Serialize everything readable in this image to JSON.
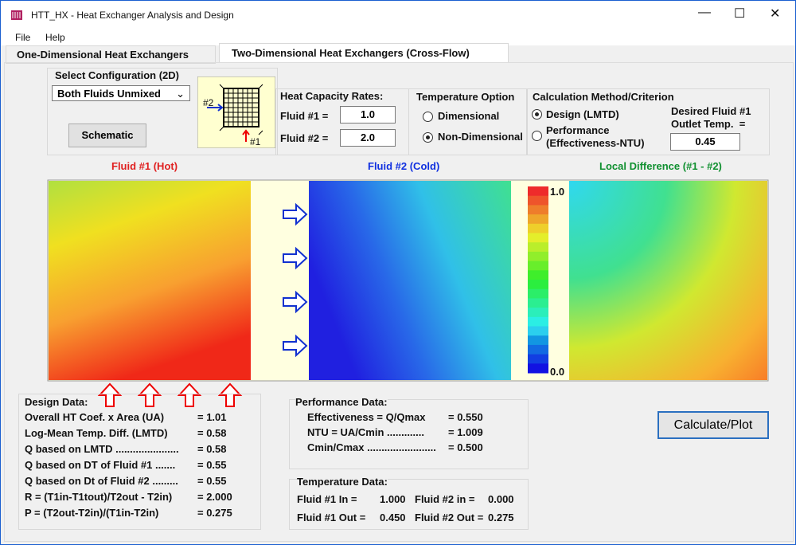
{
  "window": {
    "title": "HTT_HX - Heat Exchanger Analysis and Design"
  },
  "menu": [
    "File",
    "Help"
  ],
  "tabs": [
    "One-Dimensional Heat Exchangers",
    "Two-Dimensional Heat Exchangers (Cross-Flow)"
  ],
  "config": {
    "label": "Select Configuration (2D)",
    "selected": "Both Fluids Unmixed",
    "button": "Schematic"
  },
  "schematic": {
    "fluid_2": "#2",
    "fluid_1": "#1"
  },
  "heat_capacity": {
    "title": "Heat Capacity Rates:",
    "fluid_1_label": "Fluid #1 =",
    "fluid_1_value": "1.0",
    "fluid_2_label": "Fluid #2 =",
    "fluid_2_value": "2.0"
  },
  "temperature_option": {
    "title": "Temperature Option",
    "options": [
      "Dimensional",
      "Non-Dimensional"
    ]
  },
  "calculation": {
    "title": "Calculation Method/Criterion",
    "design": "Design (LMTD)",
    "performance": [
      "Performance",
      "(Effectiveness-NTU)"
    ],
    "desired": [
      "Desired Fluid #1",
      "Outlet Temp.  ="
    ],
    "desired_value": "0.45"
  },
  "plots": {
    "titles": [
      "Fluid #1 (Hot)",
      "Fluid #2 (Cold)",
      "Local Difference (#1 - #2)"
    ],
    "colorbar_max": "1.0",
    "colorbar_min": "0.0"
  },
  "design_data": {
    "title": "Design Data:",
    "rows": [
      [
        "Overall HT Coef. x Area (UA)",
        "= 1.01"
      ],
      [
        "Log-Mean Temp. Diff.  (LMTD)",
        "= 0.58"
      ],
      [
        "Q based on LMTD ......................",
        "= 0.58"
      ],
      [
        "Q based on DT of Fluid #1 .......",
        "= 0.55"
      ],
      [
        "Q based on Dt of Fluid #2 .........",
        "= 0.55"
      ],
      [
        "R = (T1in-T1tout)/T2out - T2in)",
        "= 2.000"
      ],
      [
        "P = (T2out-T2in)/(T1in-T2in)",
        "= 0.275"
      ]
    ]
  },
  "performance_data": {
    "title": "Performance Data:",
    "rows": [
      [
        "Effectiveness = Q/Qmax",
        "= 0.550"
      ],
      [
        "NTU = UA/Cmin .............",
        "= 1.009"
      ],
      [
        "Cmin/Cmax ........................",
        "= 0.500"
      ]
    ]
  },
  "temperature_data": {
    "title": "Temperature Data:",
    "rows": [
      [
        "Fluid #1 In =",
        "1.000",
        "Fluid #2 in =",
        "0.000"
      ],
      [
        "Fluid #1 Out =",
        "0.450",
        "Fluid #2 Out =",
        "0.275"
      ]
    ]
  },
  "calculate_button": "Calculate/Plot"
}
